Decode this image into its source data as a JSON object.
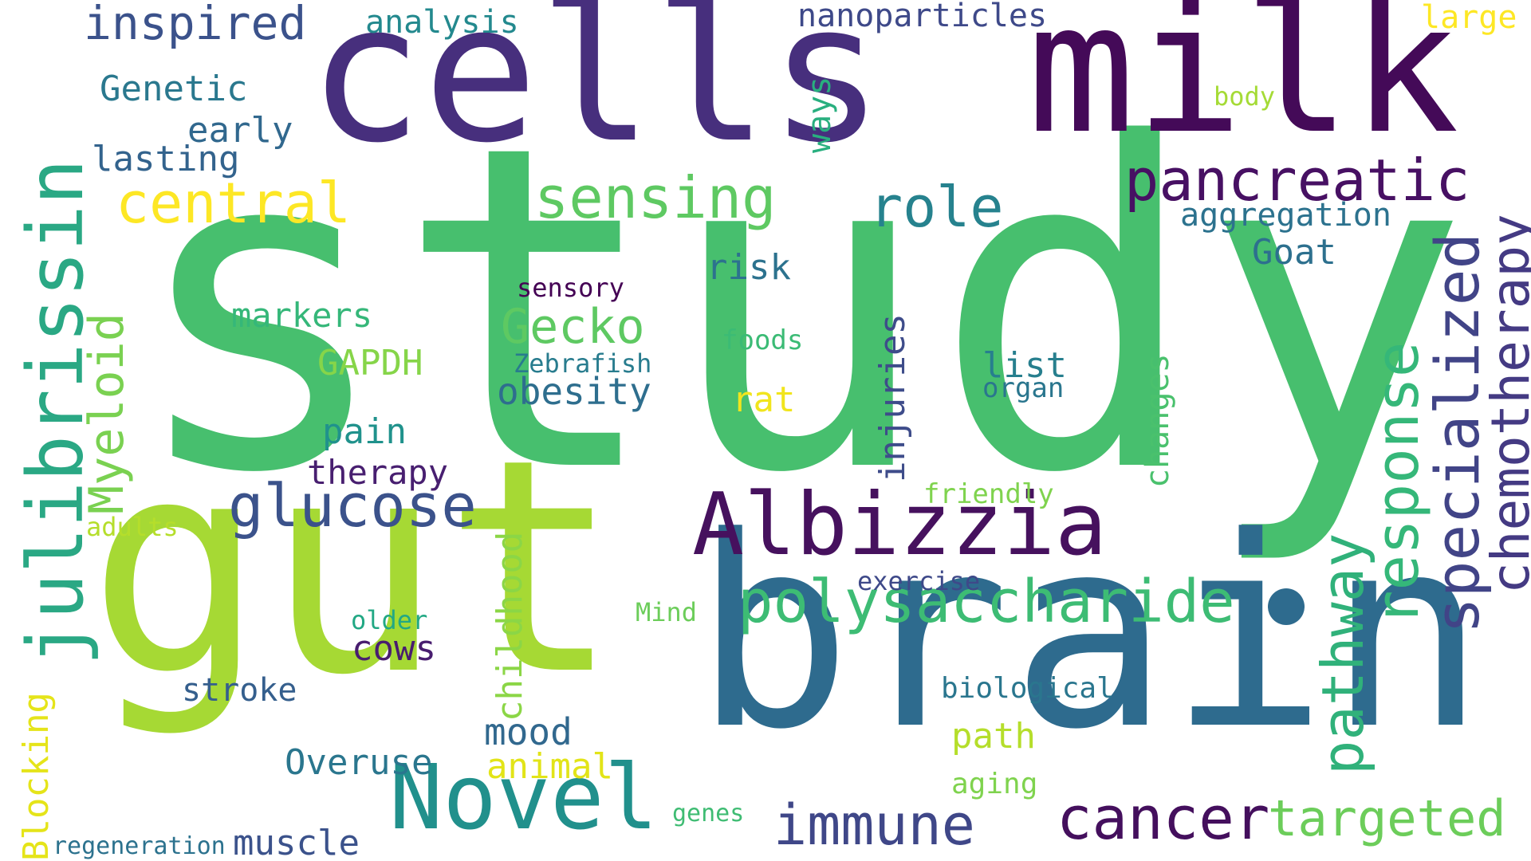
{
  "word_cloud": {
    "palette": [
      "#440154",
      "#46327e",
      "#365c8d",
      "#277f8e",
      "#1fa187",
      "#4ac16d",
      "#a0da39",
      "#fde725"
    ],
    "words": [
      {
        "text": "study",
        "color": "#47bf6e"
      },
      {
        "text": "gut",
        "color": "#a6d934"
      },
      {
        "text": "brain",
        "color": "#2e6b8e"
      },
      {
        "text": "cells",
        "color": "#472f7d"
      },
      {
        "text": "milk",
        "color": "#440a58"
      },
      {
        "text": "Albizzia",
        "color": "#46115e"
      },
      {
        "text": "Novel",
        "color": "#21908c"
      },
      {
        "text": "julibrissin",
        "color": "#2aa884"
      },
      {
        "text": "polysaccharide",
        "color": "#3dbc74"
      },
      {
        "text": "pancreatic",
        "color": "#471063"
      },
      {
        "text": "response",
        "color": "#35b779"
      },
      {
        "text": "specialized",
        "color": "#414487"
      },
      {
        "text": "chemotherapy",
        "color": "#443a83"
      },
      {
        "text": "pathway",
        "color": "#30b17a"
      },
      {
        "text": "cancer",
        "color": "#440f5d"
      },
      {
        "text": "targeted",
        "color": "#6ccd5a"
      },
      {
        "text": "immune",
        "color": "#3f4788"
      },
      {
        "text": "glucose",
        "color": "#3b528b"
      },
      {
        "text": "sensing",
        "color": "#5ec962"
      },
      {
        "text": "central",
        "color": "#fde725"
      },
      {
        "text": "role",
        "color": "#26828e"
      },
      {
        "text": "Gecko",
        "color": "#5ec962"
      },
      {
        "text": "Myeloid",
        "color": "#7ad151"
      },
      {
        "text": "inspired",
        "color": "#3b528b"
      },
      {
        "text": "analysis",
        "color": "#23898e"
      },
      {
        "text": "nanoparticles",
        "color": "#3e4989"
      },
      {
        "text": "large",
        "color": "#fde725"
      },
      {
        "text": "body",
        "color": "#a5db36"
      },
      {
        "text": "Genetic",
        "color": "#2a788e"
      },
      {
        "text": "early",
        "color": "#31688e"
      },
      {
        "text": "lasting",
        "color": "#33638d"
      },
      {
        "text": "ways",
        "color": "#29af7f"
      },
      {
        "text": "aggregation",
        "color": "#2c728e"
      },
      {
        "text": "Goat",
        "color": "#2d708e"
      },
      {
        "text": "risk",
        "color": "#2c728e"
      },
      {
        "text": "sensory",
        "color": "#440154"
      },
      {
        "text": "markers",
        "color": "#35b779"
      },
      {
        "text": "foods",
        "color": "#3bbb75"
      },
      {
        "text": "GAPDH",
        "color": "#86d549"
      },
      {
        "text": "Zebrafish",
        "color": "#287c8e"
      },
      {
        "text": "obesity",
        "color": "#2e6e8e"
      },
      {
        "text": "list",
        "color": "#277f8e"
      },
      {
        "text": "organ",
        "color": "#2a768e"
      },
      {
        "text": "rat",
        "color": "#f1e51d"
      },
      {
        "text": "injuries",
        "color": "#3e4c8a"
      },
      {
        "text": "changes",
        "color": "#4ac16d"
      },
      {
        "text": "pain",
        "color": "#20928c"
      },
      {
        "text": "therapy",
        "color": "#481f70"
      },
      {
        "text": "friendly",
        "color": "#7fd34e"
      },
      {
        "text": "adults",
        "color": "#b5de2b"
      },
      {
        "text": "childhood",
        "color": "#8bd646"
      },
      {
        "text": "exercise",
        "color": "#3e4989"
      },
      {
        "text": "older",
        "color": "#22a884"
      },
      {
        "text": "Mind",
        "color": "#6ccd5a"
      },
      {
        "text": "cows",
        "color": "#481d6f"
      },
      {
        "text": "stroke",
        "color": "#355f8d"
      },
      {
        "text": "biological",
        "color": "#2a768e"
      },
      {
        "text": "Blocking",
        "color": "#e5e419"
      },
      {
        "text": "mood",
        "color": "#31688e"
      },
      {
        "text": "path",
        "color": "#b5de2b"
      },
      {
        "text": "Overuse",
        "color": "#2a768e"
      },
      {
        "text": "animal",
        "color": "#e2e418"
      },
      {
        "text": "aging",
        "color": "#7fd34e"
      },
      {
        "text": "genes",
        "color": "#3fbc73"
      },
      {
        "text": "regeneration",
        "color": "#2c728e"
      },
      {
        "text": "muscle",
        "color": "#3b528b"
      }
    ]
  }
}
